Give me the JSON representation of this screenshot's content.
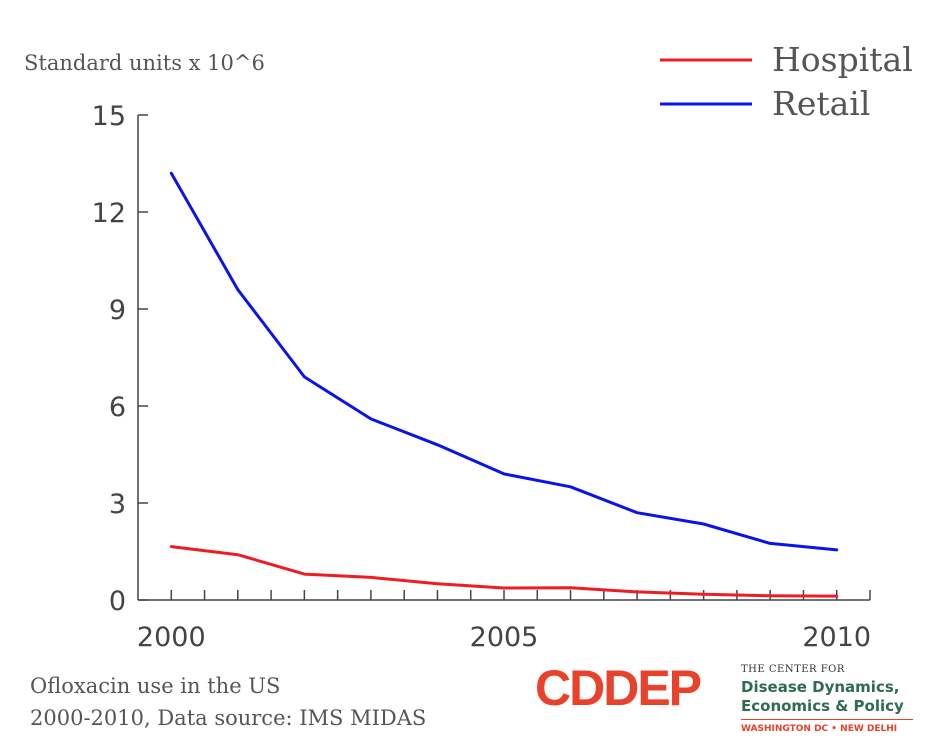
{
  "chart_data": {
    "type": "line",
    "title": "",
    "ylabel": "Standard units x 10^6",
    "xlabel": "",
    "x": [
      2000,
      2001,
      2002,
      2003,
      2004,
      2005,
      2006,
      2007,
      2008,
      2009,
      2010
    ],
    "xlim": [
      1999.5,
      2010.5
    ],
    "ylim": [
      0,
      15
    ],
    "yticks": [
      0,
      3,
      6,
      9,
      12,
      15
    ],
    "ytick_labels": [
      "0",
      "3",
      "6",
      "9",
      "12",
      "15"
    ],
    "xticks_labeled": [
      2000,
      2005,
      2010
    ],
    "xtick_labels": [
      "2000",
      "2005",
      "2010"
    ],
    "grid": false,
    "legend_placement": "top-right",
    "series": [
      {
        "name": "Hospital",
        "color": "#ee1c25",
        "values": [
          1.65,
          1.4,
          0.8,
          0.7,
          0.5,
          0.37,
          0.38,
          0.25,
          0.18,
          0.13,
          0.12
        ]
      },
      {
        "name": "Retail",
        "color": "#0a14e8",
        "values": [
          13.2,
          9.6,
          6.9,
          5.6,
          4.8,
          3.9,
          3.5,
          2.7,
          2.35,
          1.75,
          1.55
        ]
      }
    ]
  },
  "caption": {
    "line1": "Ofloxacin use in the US",
    "line2": "2000-2010, Data source: IMS MIDAS"
  },
  "logo": {
    "wordmark": "CDDEP",
    "small_text": "THE CENTER FOR",
    "line1": "Disease Dynamics,",
    "line2": "Economics & Policy",
    "cities": "WASHINGTON DC • NEW DELHI",
    "color_red": "#e8422d",
    "color_green": "#2e6b4f"
  }
}
